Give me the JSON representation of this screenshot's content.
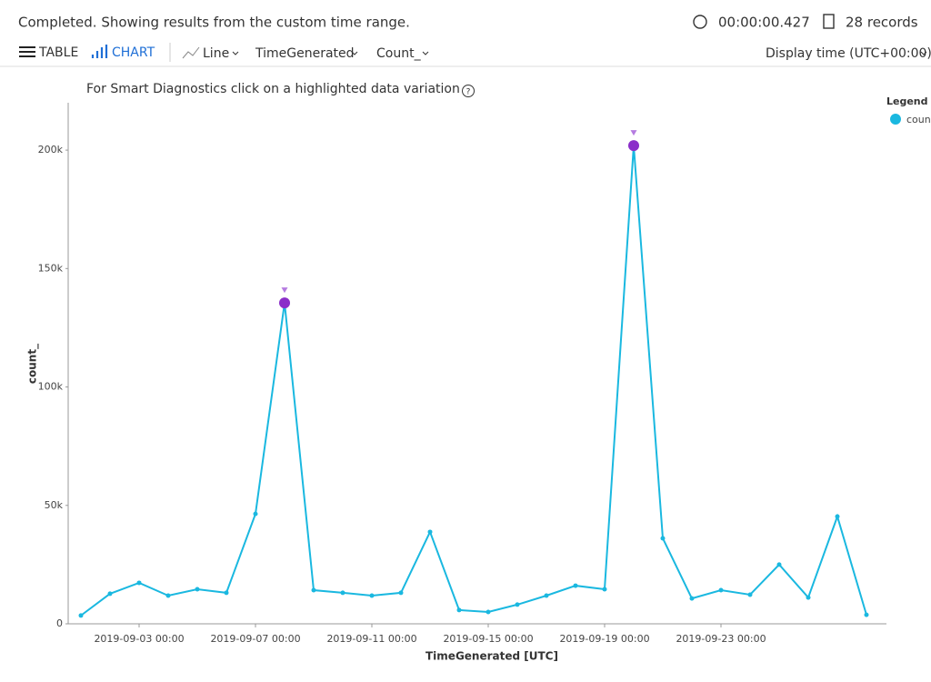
{
  "status": "Completed. Showing results from the custom time range.",
  "duration": "00:00:00.427",
  "records": "28 records",
  "toolbar": {
    "table": "TABLE",
    "chart": "CHART",
    "chart_type": "Line",
    "x_column": "TimeGenerated",
    "y_column": "Count_",
    "display_time": "Display time (UTC+00:00)"
  },
  "smart_diagnostics": "For Smart Diagnostics click on a highlighted data variation",
  "help": "?",
  "chart_data": {
    "type": "line",
    "x_label": "TimeGenerated [UTC]",
    "y_label": "count_",
    "legend_title": "Legend",
    "x": [
      "2019-09-01 00:00",
      "2019-09-02 00:00",
      "2019-09-03 00:00",
      "2019-09-04 00:00",
      "2019-09-05 00:00",
      "2019-09-06 00:00",
      "2019-09-07 00:00",
      "2019-09-08 00:00",
      "2019-09-09 00:00",
      "2019-09-10 00:00",
      "2019-09-11 00:00",
      "2019-09-12 00:00",
      "2019-09-13 00:00",
      "2019-09-14 00:00",
      "2019-09-15 00:00",
      "2019-09-16 00:00",
      "2019-09-17 00:00",
      "2019-09-18 00:00",
      "2019-09-19 00:00",
      "2019-09-20 00:00",
      "2019-09-21 00:00",
      "2019-09-22 00:00",
      "2019-09-23 00:00",
      "2019-09-24 00:00",
      "2019-09-25 00:00",
      "2019-09-26 00:00",
      "2019-09-27 00:00",
      "2019-09-28 00:00"
    ],
    "series": [
      {
        "name": "count_",
        "color": "#1ab8e0",
        "values": [
          3500,
          12700,
          17300,
          11900,
          14600,
          13100,
          46400,
          135500,
          14200,
          13100,
          11900,
          13100,
          38800,
          5800,
          5000,
          8100,
          11900,
          16100,
          14600,
          201900,
          36100,
          10700,
          14200,
          12300,
          25000,
          11100,
          45300,
          3800
        ]
      }
    ],
    "anomalies": [
      "2019-09-08 00:00",
      "2019-09-20 00:00"
    ],
    "anomaly_color": "#8b2fc9",
    "ylim": [
      0,
      220000
    ],
    "yticks": [
      0,
      {
        "value": 50000,
        "label": "50k"
      },
      {
        "value": 100000,
        "label": "100k"
      },
      {
        "value": 150000,
        "label": "150k"
      },
      {
        "value": 200000,
        "label": "200k"
      }
    ],
    "xticks": [
      "2019-09-03 00:00",
      "2019-09-07 00:00",
      "2019-09-11 00:00",
      "2019-09-15 00:00",
      "2019-09-19 00:00",
      "2019-09-23 00:00"
    ]
  }
}
